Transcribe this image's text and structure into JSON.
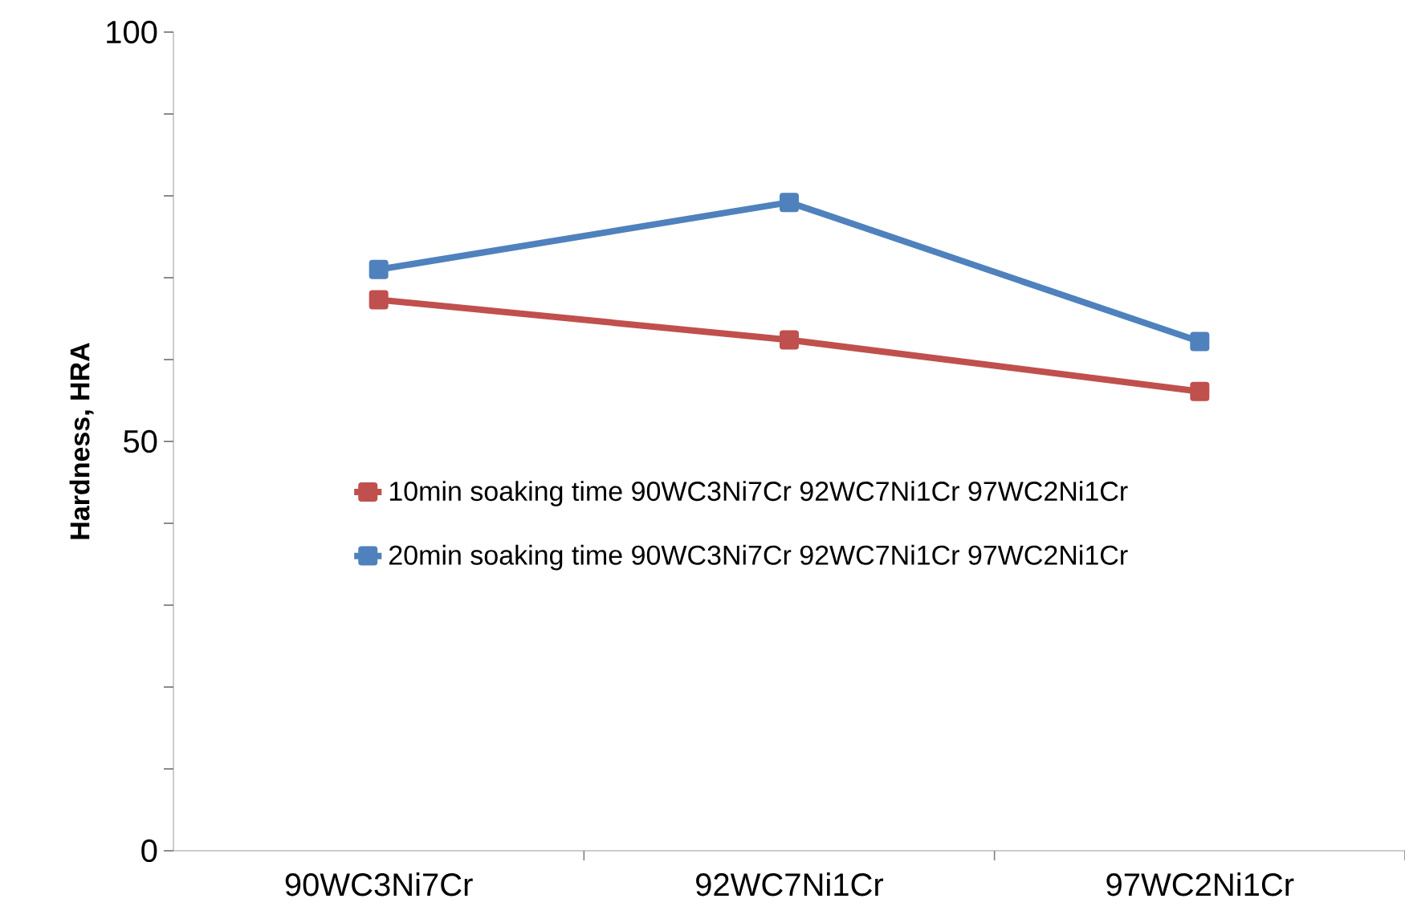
{
  "chart_data": {
    "type": "line",
    "ylabel": "Hardness, HRA",
    "categories": [
      "90WC3Ni7Cr",
      "92WC7Ni1Cr",
      "97WC2Ni1Cr"
    ],
    "series": [
      {
        "name": "10min soaking time 90WC3Ni7Cr 92WC7Ni1Cr 97WC2Ni1Cr",
        "color": "#c0504d",
        "values": [
          67.3,
          62.4,
          56.1
        ]
      },
      {
        "name": "20min soaking time 90WC3Ni7Cr 92WC7Ni1Cr 97WC2Ni1Cr",
        "color": "#4f81bd",
        "values": [
          71.0,
          79.2,
          62.2
        ]
      }
    ],
    "ylim": [
      0,
      100
    ],
    "yticks": [
      0,
      {
        "value": 10,
        "label": null
      },
      {
        "value": 20,
        "label": null
      },
      {
        "value": 30,
        "label": null
      },
      {
        "value": 40,
        "label": null
      },
      50,
      {
        "value": 60,
        "label": null
      },
      {
        "value": 70,
        "label": null
      },
      {
        "value": 80,
        "label": null
      },
      {
        "value": 90,
        "label": null
      },
      100
    ],
    "grid": false,
    "legend": "left",
    "marker": "square",
    "line_style": "solid"
  }
}
